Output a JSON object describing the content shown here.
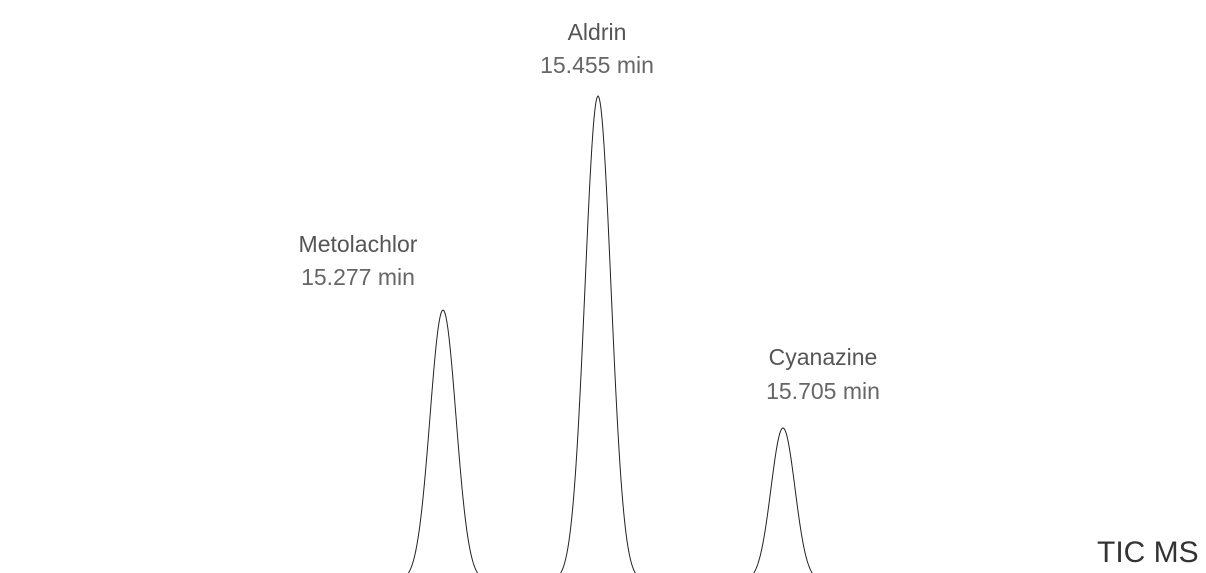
{
  "peaks": [
    {
      "name": "Metolachlor",
      "time": "15.277 min"
    },
    {
      "name": "Aldrin",
      "time": "15.455 min"
    },
    {
      "name": "Cyanazine",
      "time": "15.705 min"
    }
  ],
  "trace_label": "TIC MS"
}
